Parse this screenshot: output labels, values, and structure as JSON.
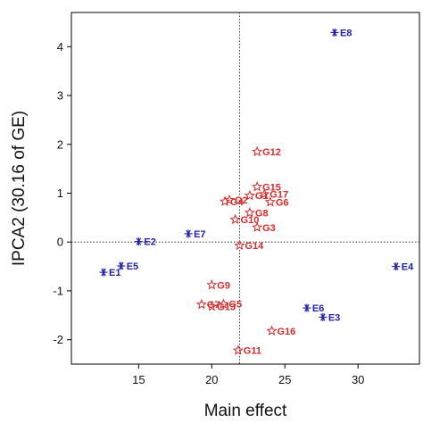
{
  "chart_data": {
    "type": "scatter",
    "xlabel": "Main effect",
    "ylabel": "IPCA2 (30.16 of GE)",
    "xlim": [
      10.4,
      34.2
    ],
    "ylim": [
      -2.5,
      4.7
    ],
    "xticks": [
      15,
      20,
      25,
      30
    ],
    "yticks": [
      -2,
      -1,
      0,
      1,
      2,
      3,
      4
    ],
    "reference_lines": {
      "x": 21.9,
      "y": 0
    },
    "grid": false,
    "colors": {
      "environments": "#1f1fa8",
      "genotypes": "#d42a2a"
    },
    "series": [
      {
        "marker": "asterisk",
        "points": [
          {
            "label": "E1",
            "x": 12.6,
            "y": -0.62
          },
          {
            "label": "E2",
            "x": 15.0,
            "y": 0.01
          },
          {
            "label": "E3",
            "x": 27.6,
            "y": -1.54
          },
          {
            "label": "E4",
            "x": 32.6,
            "y": -0.5
          },
          {
            "label": "E5",
            "x": 13.8,
            "y": -0.49
          },
          {
            "label": "E6",
            "x": 26.5,
            "y": -1.35
          },
          {
            "label": "E7",
            "x": 18.4,
            "y": 0.17
          },
          {
            "label": "E8",
            "x": 28.4,
            "y": 4.29
          }
        ]
      },
      {
        "marker": "star",
        "points": [
          {
            "label": "G1",
            "x": 22.6,
            "y": 0.95
          },
          {
            "label": "G2",
            "x": 21.2,
            "y": 0.86
          },
          {
            "label": "G3",
            "x": 23.1,
            "y": 0.3
          },
          {
            "label": "G4",
            "x": 20.9,
            "y": 0.83
          },
          {
            "label": "G5",
            "x": 20.8,
            "y": -1.27
          },
          {
            "label": "G6",
            "x": 24.0,
            "y": 0.82
          },
          {
            "label": "G7",
            "x": 19.3,
            "y": -1.28
          },
          {
            "label": "G8",
            "x": 22.6,
            "y": 0.6
          },
          {
            "label": "G9",
            "x": 20.0,
            "y": -0.88
          },
          {
            "label": "G10",
            "x": 21.6,
            "y": 0.46
          },
          {
            "label": "G11",
            "x": 21.8,
            "y": -2.22
          },
          {
            "label": "G12",
            "x": 23.1,
            "y": 1.85
          },
          {
            "label": "G13",
            "x": 20.0,
            "y": -1.32
          },
          {
            "label": "G14",
            "x": 21.9,
            "y": -0.07
          },
          {
            "label": "G15",
            "x": 23.1,
            "y": 1.13
          },
          {
            "label": "G16",
            "x": 24.1,
            "y": -1.82
          },
          {
            "label": "G17",
            "x": 23.6,
            "y": 0.98
          }
        ]
      }
    ]
  }
}
